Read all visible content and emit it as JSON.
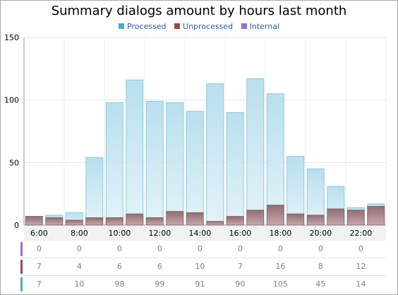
{
  "chart_data": {
    "type": "bar",
    "title": "Summary dialogs amount by hours last month",
    "categories": [
      "6:00",
      "7:00",
      "8:00",
      "9:00",
      "10:00",
      "11:00",
      "12:00",
      "13:00",
      "14:00",
      "15:00",
      "16:00",
      "17:00",
      "18:00",
      "19:00",
      "20:00",
      "21:00",
      "22:00",
      "23:00"
    ],
    "x_tick_labels": [
      "6:00",
      "8:00",
      "10:00",
      "12:00",
      "14:00",
      "16:00",
      "18:00",
      "20:00",
      "22:00"
    ],
    "y_ticks": [
      0,
      50,
      100,
      150
    ],
    "ylim": [
      0,
      150
    ],
    "grid": true,
    "legend_position": "top-center",
    "series": [
      {
        "name": "Processed",
        "color": "#4bacc6",
        "values": [
          7,
          8,
          10,
          54,
          98,
          116,
          99,
          98,
          91,
          113,
          90,
          117,
          105,
          55,
          45,
          31,
          14,
          17
        ]
      },
      {
        "name": "Unprocessed",
        "color": "#a0474a",
        "values": [
          7,
          6,
          4,
          6,
          6,
          9,
          6,
          11,
          10,
          3,
          7,
          12,
          16,
          9,
          8,
          13,
          12,
          15
        ]
      },
      {
        "name": "Internal",
        "color": "#9b6ddb",
        "values": [
          0,
          0,
          0,
          0,
          0,
          0,
          0,
          0,
          0,
          0,
          0,
          0,
          0,
          0,
          0,
          0,
          0,
          0
        ]
      }
    ]
  },
  "table": {
    "rows": [
      {
        "color": "#9b6ddb",
        "values": [
          "0",
          "0",
          "0",
          "0",
          "0",
          "0",
          "0",
          "0",
          "0"
        ]
      },
      {
        "color": "#a0474a",
        "values": [
          "7",
          "4",
          "6",
          "6",
          "10",
          "7",
          "16",
          "8",
          "12"
        ]
      },
      {
        "color": "#4bacc6",
        "values": [
          "7",
          "10",
          "98",
          "99",
          "91",
          "90",
          "105",
          "45",
          "14"
        ]
      }
    ]
  }
}
